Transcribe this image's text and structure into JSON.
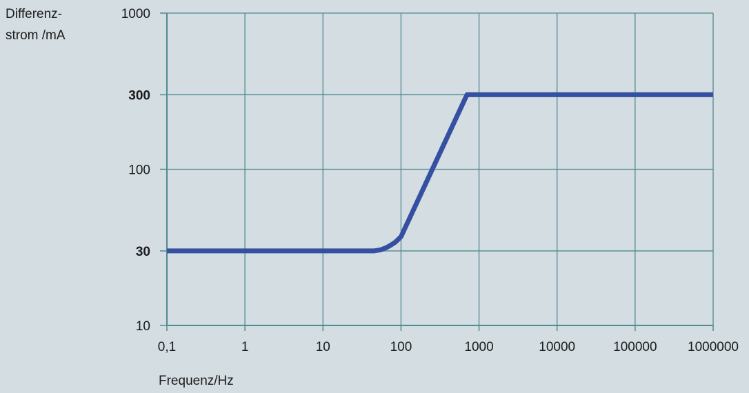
{
  "chart_data": {
    "type": "line",
    "ylabel_lines": [
      "Differenz-",
      "strom /mA"
    ],
    "xlabel": "Frequenz/Hz",
    "xscale": "log",
    "yscale": "log",
    "xlim": [
      0.1,
      1000000
    ],
    "ylim": [
      10,
      1000
    ],
    "grid": true,
    "x_ticks": [
      {
        "value": 0.1,
        "label": "0,1"
      },
      {
        "value": 1,
        "label": "1"
      },
      {
        "value": 10,
        "label": "10"
      },
      {
        "value": 100,
        "label": "100"
      },
      {
        "value": 1000,
        "label": "1000"
      },
      {
        "value": 10000,
        "label": "10000"
      },
      {
        "value": 100000,
        "label": "100000"
      },
      {
        "value": 1000000,
        "label": "1000000"
      }
    ],
    "y_ticks": [
      {
        "value": 10,
        "label": "10",
        "bold": false
      },
      {
        "value": 30,
        "label": "30",
        "bold": true
      },
      {
        "value": 100,
        "label": "100",
        "bold": false
      },
      {
        "value": 300,
        "label": "300",
        "bold": true
      },
      {
        "value": 1000,
        "label": "1000",
        "bold": false
      }
    ],
    "series": [
      {
        "color": "#3550a0",
        "x": [
          0.1,
          45,
          55,
          65,
          75,
          85,
          100,
          700,
          1000000
        ],
        "y": [
          30,
          30,
          30.5,
          31.5,
          32.8,
          34.2,
          37,
          300,
          300
        ]
      }
    ]
  },
  "colors": {
    "background": "#d3dde2",
    "grid": "#4f8a90",
    "axis": "#4f8a90",
    "line": "#3550a0"
  }
}
